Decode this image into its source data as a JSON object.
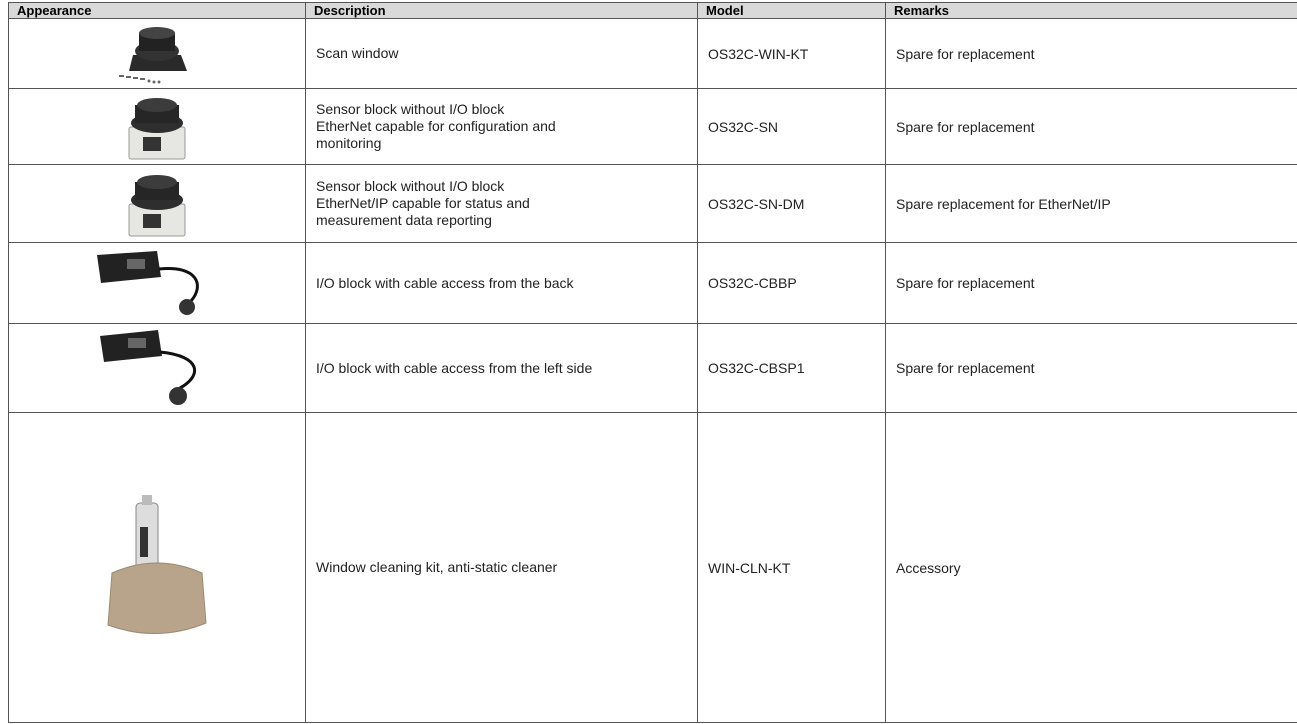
{
  "table": {
    "headers": [
      "Appearance",
      "Description",
      "Model",
      "Remarks"
    ],
    "rows": [
      {
        "description": [
          "Scan window"
        ],
        "model": "OS32C-WIN-KT",
        "remarks": "Spare for replacement"
      },
      {
        "description": [
          "Sensor block without I/O block",
          "EtherNet capable for configuration and",
          "monitoring"
        ],
        "model": "OS32C-SN",
        "remarks": "Spare for replacement"
      },
      {
        "description": [
          "Sensor block without I/O block",
          "EtherNet/IP capable for status and",
          "measurement data reporting"
        ],
        "model": "OS32C-SN-DM",
        "remarks": "Spare replacement for EtherNet/IP"
      },
      {
        "description": [
          "I/O block with cable access from the back"
        ],
        "model": "OS32C-CBBP",
        "remarks": "Spare for replacement"
      },
      {
        "description": [
          "I/O block with cable access from the left side"
        ],
        "model": "OS32C-CBSP1",
        "remarks": "Spare for replacement"
      },
      {
        "description": [
          "Window cleaning kit, anti-static cleaner"
        ],
        "model": "WIN-CLN-KT",
        "remarks": "Accessory"
      }
    ]
  }
}
